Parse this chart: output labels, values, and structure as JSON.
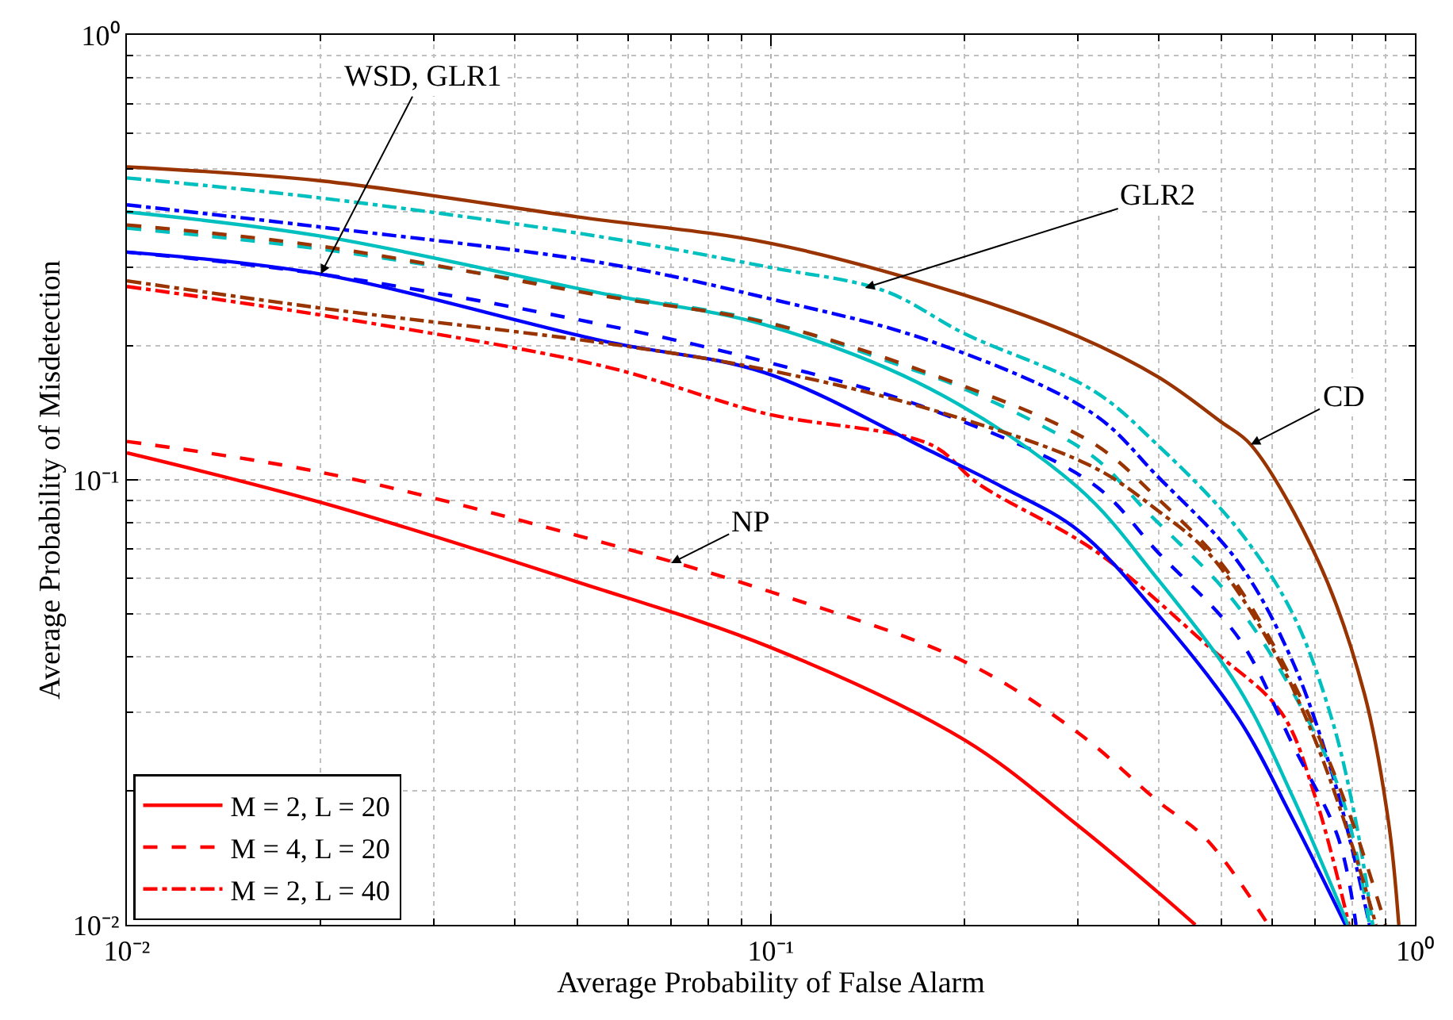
{
  "chart_data": {
    "type": "line",
    "xlabel": "Average Probability of False Alarm",
    "ylabel": "Average Probability of Misdetection",
    "log": "xy",
    "grid": true,
    "legend": "bottom left",
    "marker": "none",
    "xlim": [
      0.01,
      1
    ],
    "ylim": [
      0.01,
      1
    ],
    "xticks": [
      {
        "value": 0.01,
        "label": "10⁻²"
      },
      {
        "value": 0.1,
        "label": "10⁻¹"
      },
      {
        "value": 1,
        "label": "10⁰"
      }
    ],
    "yticks": [
      {
        "value": 0.01,
        "label": "10⁻²"
      },
      {
        "value": 0.1,
        "label": "10⁻¹"
      },
      {
        "value": 1,
        "label": "10⁰"
      }
    ],
    "series": [
      {
        "name": "M = 2, L = 20",
        "color": "#ff0000",
        "line_style": "solid",
        "x": [
          0.01,
          0.02,
          0.05,
          0.1,
          0.2,
          0.3,
          0.4,
          0.456
        ],
        "values": [
          0.115,
          0.089,
          0.059,
          0.042,
          0.026,
          0.0167,
          0.0118,
          0.01
        ]
      },
      {
        "name": "M = 4, L = 20",
        "color": "#ff0000",
        "line_style": "dashed",
        "x": [
          0.01,
          0.02,
          0.05,
          0.1,
          0.2,
          0.3,
          0.4,
          0.474,
          0.592
        ],
        "values": [
          0.122,
          0.104,
          0.075,
          0.056,
          0.039,
          0.027,
          0.0189,
          0.0156,
          0.01
        ]
      },
      {
        "name": "M = 2, L = 40",
        "color": "#ff0000",
        "line_style": "dashdot",
        "x": [
          0.01,
          0.021,
          0.055,
          0.098,
          0.177,
          0.21,
          0.32,
          0.48,
          0.62,
          0.7,
          0.79
        ],
        "values": [
          0.272,
          0.232,
          0.18,
          0.141,
          0.12,
          0.098,
          0.069,
          0.042,
          0.03,
          0.0194,
          0.01
        ]
      },
      {
        "color": "#0000ff",
        "line_style": "solid",
        "x": [
          0.01,
          0.02,
          0.055,
          0.098,
          0.177,
          0.23,
          0.3,
          0.398,
          0.533,
          0.646,
          0.78
        ],
        "values": [
          0.325,
          0.29,
          0.205,
          0.174,
          0.116,
          0.096,
          0.077,
          0.05,
          0.029,
          0.0173,
          0.01
        ]
      },
      {
        "color": "#0000ff",
        "line_style": "dashed",
        "x": [
          0.01,
          0.02,
          0.055,
          0.1,
          0.177,
          0.316,
          0.398,
          0.533,
          0.646,
          0.76,
          0.81
        ],
        "values": [
          0.325,
          0.29,
          0.223,
          0.183,
          0.144,
          0.098,
          0.069,
          0.044,
          0.0254,
          0.0157,
          0.01
        ]
      },
      {
        "color": "#0000ff",
        "line_style": "dashdot",
        "x": [
          0.01,
          0.02,
          0.055,
          0.1,
          0.177,
          0.316,
          0.398,
          0.533,
          0.646,
          0.743,
          0.8,
          0.85
        ],
        "values": [
          0.415,
          0.37,
          0.307,
          0.255,
          0.205,
          0.141,
          0.102,
          0.065,
          0.039,
          0.022,
          0.0147,
          0.01
        ]
      },
      {
        "color": "#00bfbf",
        "line_style": "solid",
        "x": [
          0.01,
          0.02,
          0.055,
          0.098,
          0.177,
          0.3,
          0.398,
          0.533,
          0.646,
          0.787
        ],
        "values": [
          0.4,
          0.353,
          0.262,
          0.223,
          0.16,
          0.096,
          0.06,
          0.034,
          0.0194,
          0.01
        ]
      },
      {
        "color": "#00bfbf",
        "line_style": "dashed",
        "x": [
          0.01,
          0.02,
          0.055,
          0.1,
          0.16,
          0.2,
          0.316,
          0.38,
          0.52,
          0.646,
          0.77,
          0.85
        ],
        "values": [
          0.368,
          0.33,
          0.262,
          0.225,
          0.18,
          0.16,
          0.113,
          0.086,
          0.054,
          0.0334,
          0.0194,
          0.01
        ]
      },
      {
        "color": "#00bfbf",
        "line_style": "dashdot",
        "x": [
          0.01,
          0.02,
          0.055,
          0.1,
          0.15,
          0.2,
          0.316,
          0.398,
          0.533,
          0.646,
          0.743,
          0.81,
          0.86
        ],
        "values": [
          0.477,
          0.43,
          0.351,
          0.3,
          0.266,
          0.213,
          0.159,
          0.12,
          0.077,
          0.05,
          0.029,
          0.017,
          0.01
        ]
      },
      {
        "color": "#993300",
        "line_style": "solid",
        "x": [
          0.01,
          0.02,
          0.05,
          0.1,
          0.2,
          0.3,
          0.4,
          0.5,
          0.556,
          0.71,
          0.835,
          0.91,
          0.944
        ],
        "values": [
          0.505,
          0.47,
          0.39,
          0.34,
          0.26,
          0.21,
          0.17,
          0.135,
          0.12,
          0.065,
          0.033,
          0.017,
          0.01
        ]
      },
      {
        "color": "#993300",
        "line_style": "dashed",
        "x": [
          0.01,
          0.02,
          0.055,
          0.098,
          0.177,
          0.316,
          0.398,
          0.5,
          0.59,
          0.7,
          0.8,
          0.9
        ],
        "values": [
          0.374,
          0.335,
          0.259,
          0.226,
          0.173,
          0.121,
          0.091,
          0.065,
          0.045,
          0.0276,
          0.017,
          0.01
        ]
      },
      {
        "color": "#993300",
        "line_style": "dashdot",
        "x": [
          0.01,
          0.021,
          0.055,
          0.098,
          0.177,
          0.316,
          0.4,
          0.48,
          0.6,
          0.7,
          0.8,
          0.87
        ],
        "values": [
          0.28,
          0.241,
          0.203,
          0.177,
          0.144,
          0.107,
          0.085,
          0.068,
          0.042,
          0.026,
          0.015,
          0.01
        ]
      }
    ],
    "annotations": [
      {
        "text": "WSD, GLR1",
        "x": 0.02,
        "y": 0.29
      },
      {
        "text": "GLR2",
        "x": 0.14,
        "y": 0.27
      },
      {
        "text": "CD",
        "x": 0.556,
        "y": 0.12
      },
      {
        "text": "NP",
        "x": 0.07,
        "y": 0.065
      }
    ]
  }
}
